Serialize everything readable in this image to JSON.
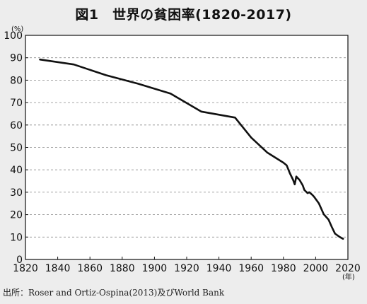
{
  "title": "図1　世界の貧困率(1820-2017)",
  "source": "出所：Roser and Ortiz-Ospina(2013)及びWorld Bank",
  "chart_data": {
    "type": "line",
    "title": "図1　世界の貧困率(1820-2017)",
    "y_unit": "(%)",
    "x_unit": "(年)",
    "xlim": [
      1820,
      2020
    ],
    "ylim": [
      0,
      100
    ],
    "x_ticks": [
      1820,
      1840,
      1860,
      1880,
      1900,
      1920,
      1940,
      1960,
      1980,
      2000,
      2020
    ],
    "y_ticks": [
      0,
      10,
      20,
      30,
      40,
      50,
      60,
      70,
      80,
      90,
      100
    ],
    "grid": "horizontal-dashed",
    "line_color": "#111111",
    "series": [
      {
        "x": [
          1829,
          1850,
          1870,
          1890,
          1910,
          1929,
          1950,
          1960,
          1970,
          1980,
          1982,
          1984,
          1986,
          1987,
          1988,
          1990,
          1992,
          1993,
          1995,
          1996,
          1998,
          1999,
          2002,
          2005,
          2008,
          2010,
          2011,
          2012,
          2015,
          2017
        ],
        "y": [
          89.2,
          87,
          82.2,
          78.4,
          74,
          66,
          63.3,
          54.4,
          47.7,
          43.2,
          42,
          38.5,
          35.5,
          33.5,
          37,
          35.5,
          33,
          31,
          29.6,
          30,
          28.8,
          28,
          25,
          20.2,
          17.8,
          14.5,
          13,
          11.5,
          10,
          9.2
        ]
      }
    ]
  }
}
